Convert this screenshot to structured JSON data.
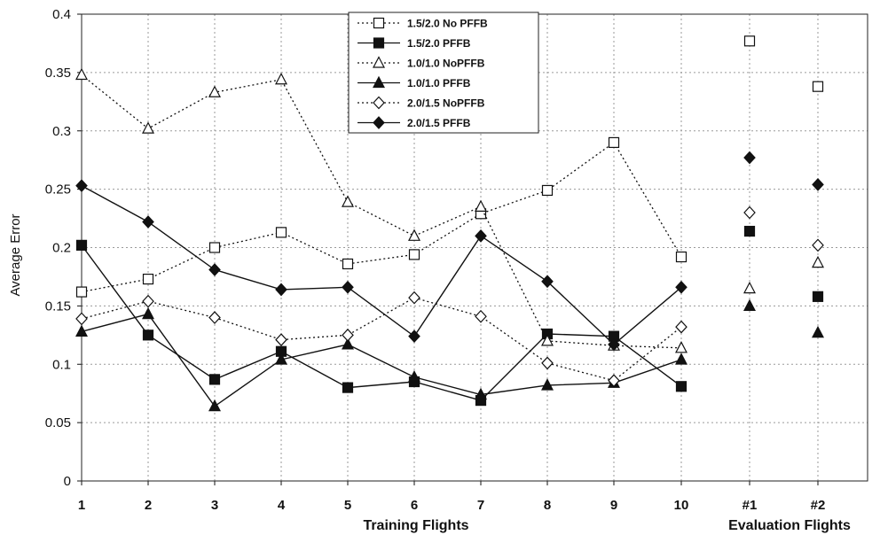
{
  "chart_data": {
    "type": "line",
    "ylabel": "Average Error",
    "xlabel": "Training Flights",
    "xlabel2": "Evaluation Flights",
    "ylim": [
      0,
      0.4
    ],
    "yticks": [
      "0",
      "0.05",
      "0.1",
      "0.15",
      "0.2",
      "0.25",
      "0.3",
      "0.35",
      "0.4"
    ],
    "categories": [
      "1",
      "2",
      "3",
      "4",
      "5",
      "6",
      "7",
      "8",
      "9",
      "10",
      "#1",
      "#2"
    ],
    "grid": true,
    "legend_position": "top-center",
    "series": [
      {
        "name": "1.5/2.0 No PFFB",
        "marker": "square",
        "filled": false,
        "dashed": true,
        "values": [
          0.162,
          0.173,
          0.2,
          0.213,
          0.186,
          0.194,
          0.229,
          0.249,
          0.29,
          0.192,
          0.377,
          0.338
        ]
      },
      {
        "name": "1.5/2.0 PFFB",
        "marker": "square",
        "filled": true,
        "dashed": false,
        "values": [
          0.202,
          0.125,
          0.087,
          0.111,
          0.08,
          0.085,
          0.069,
          0.126,
          0.124,
          0.081,
          0.214,
          0.158
        ]
      },
      {
        "name": "1.0/1.0 NoPFFB",
        "marker": "triangle",
        "filled": false,
        "dashed": true,
        "values": [
          0.348,
          0.302,
          0.333,
          0.344,
          0.239,
          0.21,
          0.235,
          0.12,
          0.116,
          0.114,
          0.165,
          0.187
        ]
      },
      {
        "name": "1.0/1.0 PFFB",
        "marker": "triangle",
        "filled": true,
        "dashed": false,
        "values": [
          0.128,
          0.143,
          0.064,
          0.104,
          0.117,
          0.089,
          0.074,
          0.082,
          0.084,
          0.104,
          0.15,
          0.127
        ]
      },
      {
        "name": "2.0/1.5 NoPFFB",
        "marker": "diamond",
        "filled": false,
        "dashed": true,
        "values": [
          0.139,
          0.154,
          0.14,
          0.121,
          0.125,
          0.157,
          0.141,
          0.101,
          0.086,
          0.132,
          0.23,
          0.202
        ]
      },
      {
        "name": "2.0/1.5 PFFB",
        "marker": "diamond",
        "filled": true,
        "dashed": false,
        "values": [
          0.253,
          0.222,
          0.181,
          0.164,
          0.166,
          0.124,
          0.21,
          0.171,
          0.117,
          0.166,
          0.277,
          0.254
        ]
      }
    ]
  }
}
